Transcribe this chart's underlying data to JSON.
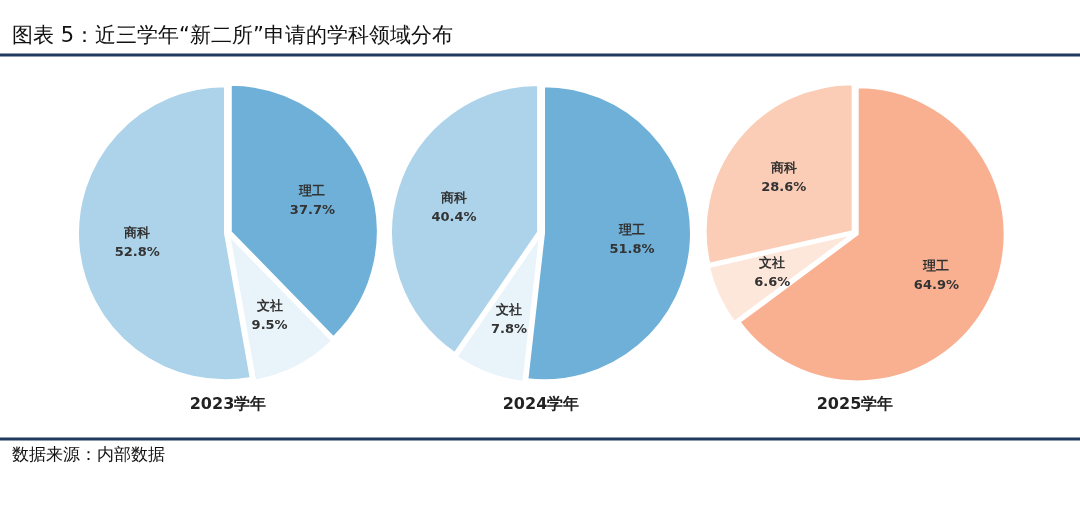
{
  "chart_data": [
    {
      "type": "pie",
      "title": "2023学年",
      "categories": [
        "理工",
        "文社",
        "商科"
      ],
      "values": [
        37.7,
        9.5,
        52.8
      ],
      "value_labels": [
        "37.7%",
        "9.5%",
        "52.8%"
      ],
      "colors": [
        "#6eb0d8",
        "#e9f3fa",
        "#acd3ea"
      ],
      "annotations": [
        "图表 5：近三学年“新二所”申请的学科领域分布"
      ]
    },
    {
      "type": "pie",
      "title": "2024学年",
      "categories": [
        "理工",
        "文社",
        "商科"
      ],
      "values": [
        51.8,
        7.8,
        40.4
      ],
      "value_labels": [
        "51.8%",
        "7.8%",
        "40.4%"
      ],
      "colors": [
        "#6eb0d8",
        "#e9f3fa",
        "#acd3ea"
      ]
    },
    {
      "type": "pie",
      "title": "2025学年",
      "categories": [
        "理工",
        "文社",
        "商科"
      ],
      "values": [
        64.9,
        6.6,
        28.6
      ],
      "value_labels": [
        "64.9%",
        "6.6%",
        "28.6%"
      ],
      "colors": [
        "#f9b091",
        "#fde7db",
        "#fbccb6"
      ],
      "annotations": [
        "数据来源：内部数据"
      ]
    }
  ]
}
